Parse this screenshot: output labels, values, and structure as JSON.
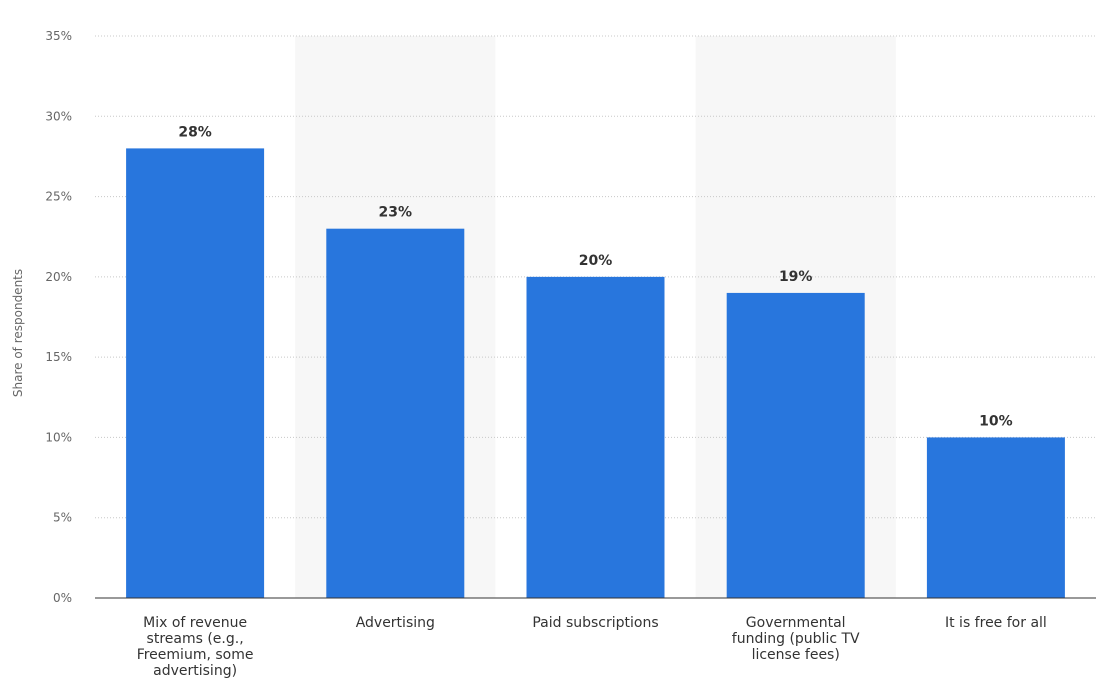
{
  "chart_data": {
    "type": "bar",
    "categories": [
      "Mix of revenue streams (e.g., Freemium, some advertising)",
      "Advertising",
      "Paid subscriptions",
      "Governmental funding (public TV license fees)",
      "It is free for all"
    ],
    "category_label_lines": [
      [
        "Mix of revenue",
        "streams (e.g.,",
        "Freemium, some",
        "advertising)"
      ],
      [
        "Advertising"
      ],
      [
        "Paid subscriptions"
      ],
      [
        "Governmental",
        "funding (public TV",
        "license fees)"
      ],
      [
        "It is free for all"
      ]
    ],
    "values": [
      28,
      23,
      20,
      19,
      10
    ],
    "data_labels": [
      "28%",
      "23%",
      "20%",
      "19%",
      "10%"
    ],
    "ylabel": "Share of respondents",
    "xlabel": "",
    "ylim": [
      0,
      35
    ],
    "yticks": [
      0,
      5,
      10,
      15,
      20,
      25,
      30,
      35
    ],
    "ytick_labels": [
      "0%",
      "5%",
      "10%",
      "15%",
      "20%",
      "25%",
      "30%",
      "35%"
    ],
    "grid": true,
    "bar_color": "#2876dd",
    "band_color": "#f7f7f7",
    "grid_color": "#c8c8c8",
    "axis_color": "#333333"
  }
}
